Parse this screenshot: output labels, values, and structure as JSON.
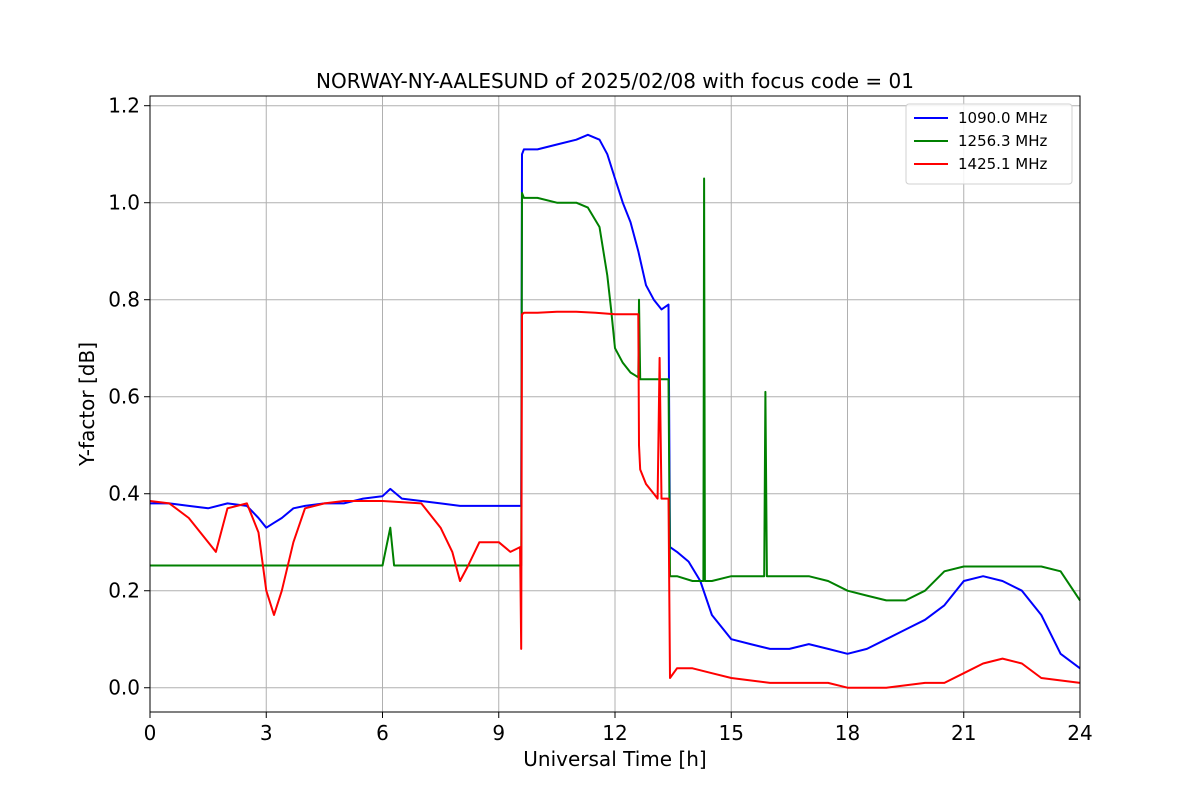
{
  "chart_data": {
    "type": "line",
    "title": "NORWAY-NY-AALESUND of 2025/02/08 with focus code = 01",
    "xlabel": "Universal Time [h]",
    "ylabel": "Y-factor [dB]",
    "xlim": [
      0,
      24
    ],
    "ylim": [
      -0.05,
      1.22
    ],
    "xticks": [
      0,
      3,
      6,
      9,
      12,
      15,
      18,
      21,
      24
    ],
    "yticks": [
      0.0,
      0.2,
      0.4,
      0.6,
      0.8,
      1.0,
      1.2
    ],
    "xtick_labels": [
      "0",
      "3",
      "6",
      "9",
      "12",
      "15",
      "18",
      "21",
      "24"
    ],
    "ytick_labels": [
      "0.0",
      "0.2",
      "0.4",
      "0.6",
      "0.8",
      "1.0",
      "1.2"
    ],
    "grid": true,
    "legend_position": "top-right",
    "series": [
      {
        "name": "1090.0 MHz",
        "color": "#0000ff",
        "x": [
          0,
          0.5,
          1.0,
          1.5,
          2.0,
          2.5,
          2.8,
          3.0,
          3.2,
          3.4,
          3.7,
          4.0,
          4.5,
          5.0,
          5.5,
          6.0,
          6.2,
          6.5,
          7.0,
          7.5,
          8.0,
          8.5,
          9.0,
          9.5,
          9.58,
          9.6,
          9.65,
          10.0,
          10.5,
          11.0,
          11.3,
          11.6,
          11.8,
          12.0,
          12.2,
          12.4,
          12.6,
          12.8,
          13.0,
          13.2,
          13.38,
          13.42,
          13.6,
          13.9,
          14.2,
          14.5,
          15.0,
          15.5,
          16.0,
          16.5,
          17.0,
          17.5,
          18.0,
          18.5,
          19.0,
          19.5,
          20.0,
          20.5,
          21.0,
          21.5,
          22.0,
          22.5,
          23.0,
          23.5,
          24.0
        ],
        "y": [
          0.38,
          0.38,
          0.375,
          0.37,
          0.38,
          0.375,
          0.35,
          0.33,
          0.34,
          0.35,
          0.37,
          0.375,
          0.38,
          0.38,
          0.39,
          0.395,
          0.41,
          0.39,
          0.385,
          0.38,
          0.375,
          0.375,
          0.375,
          0.375,
          0.375,
          1.1,
          1.11,
          1.11,
          1.12,
          1.13,
          1.14,
          1.13,
          1.1,
          1.05,
          1.0,
          0.96,
          0.9,
          0.83,
          0.8,
          0.78,
          0.79,
          0.29,
          0.28,
          0.26,
          0.22,
          0.15,
          0.1,
          0.09,
          0.08,
          0.08,
          0.09,
          0.08,
          0.07,
          0.08,
          0.1,
          0.12,
          0.14,
          0.17,
          0.22,
          0.23,
          0.22,
          0.2,
          0.15,
          0.07,
          0.04
        ]
      },
      {
        "name": "1256.3 MHz",
        "color": "#008000",
        "x": [
          0,
          1.0,
          2.0,
          3.0,
          4.0,
          5.0,
          6.0,
          6.2,
          6.3,
          7.0,
          8.0,
          9.0,
          9.58,
          9.6,
          9.65,
          10.0,
          10.5,
          11.0,
          11.3,
          11.6,
          11.8,
          11.9,
          12.0,
          12.2,
          12.4,
          12.6,
          12.62,
          12.65,
          13.0,
          13.38,
          13.42,
          13.6,
          14.0,
          14.28,
          14.3,
          14.32,
          14.5,
          15.0,
          15.5,
          15.85,
          15.88,
          15.92,
          16.0,
          16.5,
          17.0,
          17.5,
          18.0,
          18.5,
          19.0,
          19.5,
          20.0,
          20.5,
          21.0,
          21.5,
          22.0,
          22.5,
          23.0,
          23.5,
          24.0
        ],
        "y": [
          0.252,
          0.252,
          0.252,
          0.252,
          0.252,
          0.252,
          0.252,
          0.33,
          0.252,
          0.252,
          0.252,
          0.252,
          0.252,
          1.02,
          1.01,
          1.01,
          1.0,
          1.0,
          0.99,
          0.95,
          0.85,
          0.78,
          0.7,
          0.67,
          0.65,
          0.64,
          0.8,
          0.636,
          0.636,
          0.636,
          0.23,
          0.23,
          0.22,
          0.22,
          1.05,
          0.22,
          0.22,
          0.23,
          0.23,
          0.23,
          0.61,
          0.23,
          0.23,
          0.23,
          0.23,
          0.22,
          0.2,
          0.19,
          0.18,
          0.18,
          0.2,
          0.24,
          0.25,
          0.25,
          0.25,
          0.25,
          0.25,
          0.24,
          0.18
        ]
      },
      {
        "name": "1425.1 MHz",
        "color": "#ff0000",
        "x": [
          0,
          0.5,
          1.0,
          1.3,
          1.7,
          2.0,
          2.5,
          2.8,
          3.0,
          3.2,
          3.4,
          3.7,
          4.0,
          4.5,
          5.0,
          6.0,
          7.0,
          7.5,
          7.8,
          8.0,
          8.2,
          8.5,
          9.0,
          9.3,
          9.55,
          9.58,
          9.6,
          9.65,
          10.0,
          10.5,
          11.0,
          11.5,
          12.0,
          12.5,
          12.6,
          12.62,
          12.65,
          12.8,
          13.0,
          13.1,
          13.15,
          13.2,
          13.38,
          13.42,
          13.6,
          14.0,
          14.5,
          15.0,
          16.0,
          17.0,
          17.5,
          18.0,
          19.0,
          20.0,
          20.5,
          21.0,
          21.5,
          22.0,
          22.5,
          23.0,
          24.0
        ],
        "y": [
          0.385,
          0.38,
          0.35,
          0.32,
          0.28,
          0.37,
          0.38,
          0.32,
          0.2,
          0.15,
          0.2,
          0.3,
          0.37,
          0.38,
          0.385,
          0.385,
          0.38,
          0.33,
          0.28,
          0.22,
          0.25,
          0.3,
          0.3,
          0.28,
          0.29,
          0.08,
          0.77,
          0.773,
          0.773,
          0.775,
          0.775,
          0.773,
          0.77,
          0.77,
          0.77,
          0.5,
          0.45,
          0.42,
          0.4,
          0.39,
          0.68,
          0.39,
          0.39,
          0.02,
          0.04,
          0.04,
          0.03,
          0.02,
          0.01,
          0.01,
          0.01,
          0.0,
          0.0,
          0.01,
          0.01,
          0.03,
          0.05,
          0.06,
          0.05,
          0.02,
          0.01
        ]
      }
    ]
  }
}
